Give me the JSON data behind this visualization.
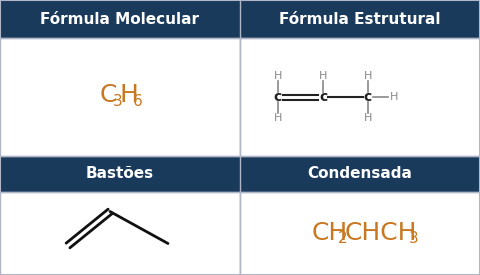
{
  "header_bg": "#1a3a5c",
  "header_text_color": "#ffffff",
  "cell_bg": "#ffffff",
  "border_color": "#b0b8c8",
  "c_color": "#222222",
  "h_color": "#888888",
  "formula_color": "#c87820",
  "condensed_color": "#c87820",
  "title1": "Fórmula Molecular",
  "title2": "Fórmula Estrutural",
  "title3": "Bastões",
  "title4": "Condensada"
}
